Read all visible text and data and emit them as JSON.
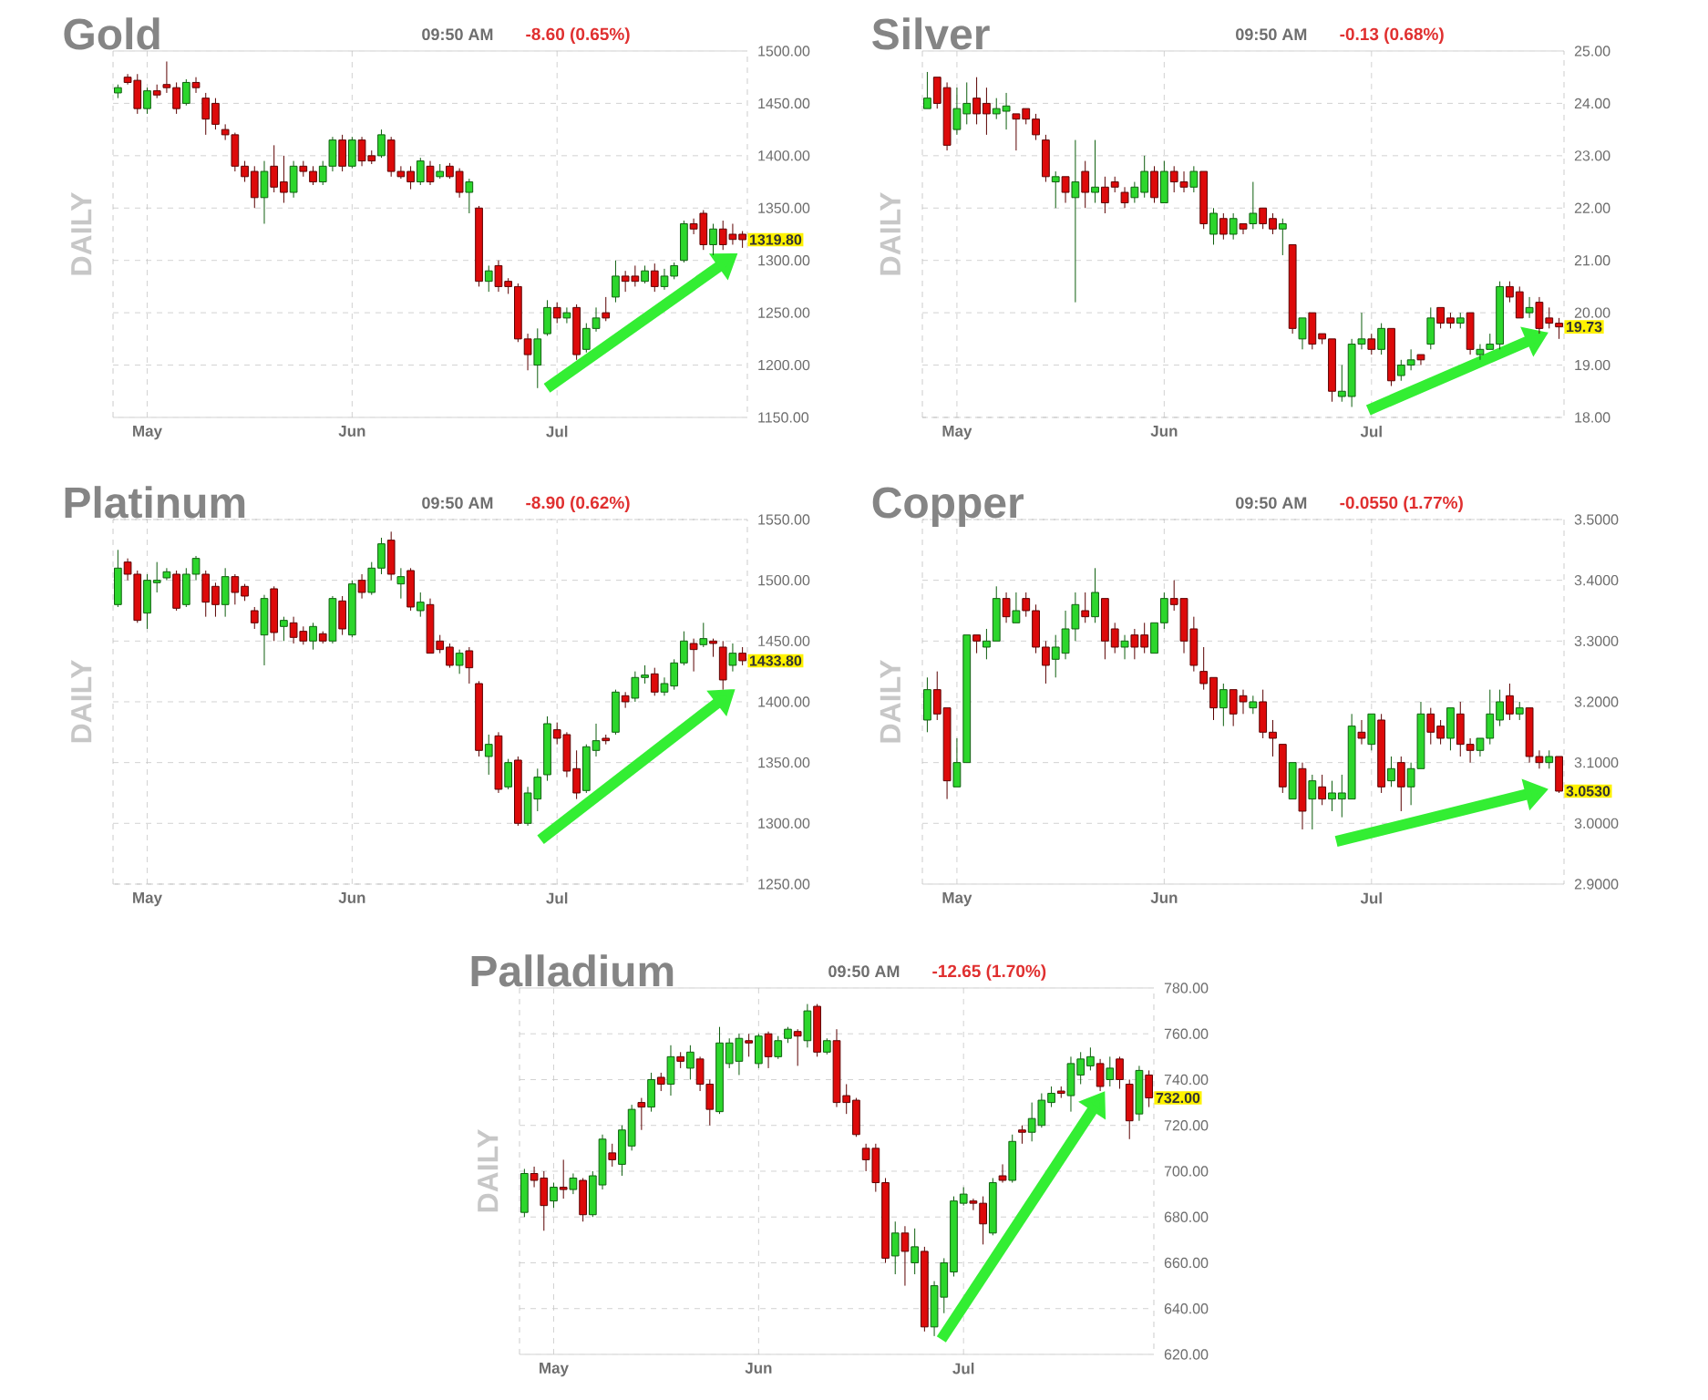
{
  "chart_data": [
    {
      "type": "candlestick",
      "title": "Gold",
      "ylabel": "DAILY",
      "annotations": [
        "09:50 AM",
        "-8.60 (0.65%)",
        "1319.80"
      ],
      "categories": [
        null,
        null,
        null,
        "May",
        null,
        null,
        null,
        null,
        null,
        null,
        null,
        null,
        null,
        null,
        null,
        null,
        null,
        null,
        null,
        null,
        null,
        null,
        null,
        null,
        "Jun",
        null,
        null,
        null,
        null,
        null,
        null,
        null,
        null,
        null,
        null,
        null,
        null,
        null,
        null,
        null,
        null,
        null,
        null,
        null,
        null,
        "Jul",
        null,
        null,
        null,
        null,
        null,
        null,
        null,
        null,
        null,
        null,
        null,
        null,
        null,
        null,
        null,
        null,
        null,
        null,
        null
      ],
      "ohlc": [
        [
          1460,
          1468,
          1455,
          1465
        ],
        [
          1475,
          1478,
          1468,
          1470
        ],
        [
          1472,
          1478,
          1440,
          1445
        ],
        [
          1445,
          1465,
          1440,
          1462
        ],
        [
          1462,
          1468,
          1455,
          1458
        ],
        [
          1468,
          1490,
          1460,
          1465
        ],
        [
          1465,
          1470,
          1440,
          1445
        ],
        [
          1450,
          1473,
          1448,
          1470
        ],
        [
          1470,
          1475,
          1460,
          1465
        ],
        [
          1455,
          1460,
          1420,
          1435
        ],
        [
          1450,
          1455,
          1425,
          1430
        ],
        [
          1425,
          1430,
          1415,
          1420
        ],
        [
          1420,
          1422,
          1385,
          1390
        ],
        [
          1390,
          1395,
          1375,
          1380
        ],
        [
          1385,
          1390,
          1350,
          1360
        ],
        [
          1360,
          1395,
          1335,
          1385
        ],
        [
          1390,
          1410,
          1365,
          1370
        ],
        [
          1375,
          1400,
          1355,
          1365
        ],
        [
          1365,
          1395,
          1360,
          1390
        ],
        [
          1390,
          1395,
          1380,
          1385
        ],
        [
          1385,
          1390,
          1372,
          1375
        ],
        [
          1375,
          1395,
          1372,
          1390
        ],
        [
          1390,
          1418,
          1385,
          1415
        ],
        [
          1415,
          1420,
          1385,
          1390
        ],
        [
          1390,
          1418,
          1388,
          1415
        ],
        [
          1415,
          1418,
          1390,
          1395
        ],
        [
          1400,
          1405,
          1392,
          1395
        ],
        [
          1400,
          1425,
          1398,
          1420
        ],
        [
          1415,
          1418,
          1380,
          1385
        ],
        [
          1385,
          1390,
          1378,
          1380
        ],
        [
          1385,
          1390,
          1368,
          1375
        ],
        [
          1375,
          1398,
          1372,
          1395
        ],
        [
          1390,
          1395,
          1372,
          1375
        ],
        [
          1380,
          1392,
          1378,
          1385
        ],
        [
          1390,
          1393,
          1378,
          1380
        ],
        [
          1385,
          1388,
          1360,
          1365
        ],
        [
          1365,
          1378,
          1345,
          1375
        ],
        [
          1350,
          1352,
          1275,
          1280
        ],
        [
          1280,
          1295,
          1270,
          1290
        ],
        [
          1295,
          1300,
          1270,
          1275
        ],
        [
          1280,
          1283,
          1268,
          1275
        ],
        [
          1275,
          1278,
          1222,
          1225
        ],
        [
          1225,
          1230,
          1195,
          1210
        ],
        [
          1200,
          1235,
          1178,
          1225
        ],
        [
          1230,
          1262,
          1228,
          1255
        ],
        [
          1255,
          1260,
          1240,
          1245
        ],
        [
          1245,
          1255,
          1240,
          1250
        ],
        [
          1255,
          1258,
          1205,
          1210
        ],
        [
          1215,
          1240,
          1212,
          1235
        ],
        [
          1235,
          1255,
          1232,
          1245
        ],
        [
          1250,
          1265,
          1242,
          1245
        ],
        [
          1265,
          1300,
          1260,
          1285
        ],
        [
          1285,
          1290,
          1270,
          1280
        ],
        [
          1285,
          1295,
          1275,
          1280
        ],
        [
          1280,
          1295,
          1278,
          1290
        ],
        [
          1290,
          1297,
          1270,
          1275
        ],
        [
          1275,
          1292,
          1272,
          1285
        ],
        [
          1285,
          1298,
          1282,
          1295
        ],
        [
          1300,
          1338,
          1298,
          1335
        ],
        [
          1335,
          1340,
          1325,
          1330
        ],
        [
          1345,
          1348,
          1310,
          1315
        ],
        [
          1315,
          1335,
          1305,
          1330
        ],
        [
          1330,
          1338,
          1310,
          1315
        ],
        [
          1325,
          1335,
          1315,
          1320
        ],
        [
          1325,
          1328,
          1312,
          1319.8
        ]
      ],
      "ylim": [
        1150,
        1500
      ],
      "yticks": [
        {
          "value": 1150,
          "label": "1150.00"
        },
        {
          "value": 1200,
          "label": "1200.00"
        },
        {
          "value": 1250,
          "label": "1250.00"
        },
        {
          "value": 1300,
          "label": "1300.00"
        },
        {
          "value": 1350,
          "label": "1350.00"
        },
        {
          "value": 1400,
          "label": "1400.00"
        },
        {
          "value": 1450,
          "label": "1450.00"
        },
        {
          "value": 1500,
          "label": "1500.00"
        }
      ],
      "grid": true
    },
    {
      "type": "candlestick",
      "title": "Silver",
      "ylabel": "DAILY",
      "annotations": [
        "09:50 AM",
        "-0.13 (0.68%)",
        "19.73"
      ],
      "categories": [
        null,
        null,
        null,
        "May",
        null,
        null,
        null,
        null,
        null,
        null,
        null,
        null,
        null,
        null,
        null,
        null,
        null,
        null,
        null,
        null,
        null,
        null,
        null,
        null,
        "Jun",
        null,
        null,
        null,
        null,
        null,
        null,
        null,
        null,
        null,
        null,
        null,
        null,
        null,
        null,
        null,
        null,
        null,
        null,
        null,
        null,
        "Jul",
        null,
        null,
        null,
        null,
        null,
        null,
        null,
        null,
        null,
        null,
        null,
        null,
        null,
        null,
        null,
        null,
        null,
        null,
        null
      ],
      "ohlc": [
        [
          23.9,
          24.6,
          23.9,
          24.1
        ],
        [
          24.5,
          24.5,
          23.9,
          24.0
        ],
        [
          24.3,
          24.4,
          23.1,
          23.2
        ],
        [
          23.5,
          24.3,
          23.4,
          23.9
        ],
        [
          23.8,
          24.4,
          23.6,
          24.0
        ],
        [
          24.1,
          24.5,
          23.6,
          23.8
        ],
        [
          24.0,
          24.3,
          23.4,
          23.8
        ],
        [
          23.8,
          24.1,
          23.7,
          23.9
        ],
        [
          23.85,
          24.2,
          23.5,
          23.95
        ],
        [
          23.8,
          23.8,
          23.1,
          23.7
        ],
        [
          23.9,
          23.9,
          23.6,
          23.7
        ],
        [
          23.7,
          23.8,
          23.3,
          23.4
        ],
        [
          23.3,
          23.4,
          22.5,
          22.6
        ],
        [
          22.5,
          22.7,
          22.0,
          22.6
        ],
        [
          22.6,
          22.6,
          22.1,
          22.3
        ],
        [
          22.2,
          23.3,
          20.2,
          22.5
        ],
        [
          22.7,
          22.9,
          22.0,
          22.3
        ],
        [
          22.3,
          23.3,
          22.1,
          22.4
        ],
        [
          22.4,
          22.6,
          21.9,
          22.1
        ],
        [
          22.5,
          22.6,
          22.3,
          22.4
        ],
        [
          22.3,
          22.4,
          22.0,
          22.1
        ],
        [
          22.2,
          22.5,
          22.1,
          22.4
        ],
        [
          22.3,
          23.0,
          22.2,
          22.7
        ],
        [
          22.7,
          22.8,
          22.1,
          22.2
        ],
        [
          22.1,
          22.9,
          22.1,
          22.7
        ],
        [
          22.7,
          22.8,
          22.3,
          22.5
        ],
        [
          22.5,
          22.7,
          22.3,
          22.4
        ],
        [
          22.4,
          22.8,
          22.3,
          22.7
        ],
        [
          22.7,
          22.7,
          21.6,
          21.7
        ],
        [
          21.5,
          22.0,
          21.3,
          21.9
        ],
        [
          21.8,
          21.9,
          21.4,
          21.5
        ],
        [
          21.5,
          21.9,
          21.4,
          21.8
        ],
        [
          21.7,
          21.7,
          21.5,
          21.6
        ],
        [
          21.7,
          22.5,
          21.6,
          21.9
        ],
        [
          22.0,
          22.0,
          21.6,
          21.7
        ],
        [
          21.8,
          21.9,
          21.5,
          21.6
        ],
        [
          21.6,
          21.8,
          21.1,
          21.7
        ],
        [
          21.3,
          21.3,
          19.6,
          19.7
        ],
        [
          19.5,
          19.9,
          19.3,
          19.9
        ],
        [
          20.0,
          20.0,
          19.3,
          19.4
        ],
        [
          19.6,
          19.6,
          19.4,
          19.5
        ],
        [
          19.5,
          19.5,
          18.3,
          18.5
        ],
        [
          18.4,
          19.0,
          18.3,
          18.5
        ],
        [
          18.4,
          19.5,
          18.2,
          19.4
        ],
        [
          19.4,
          20.0,
          19.3,
          19.5
        ],
        [
          19.5,
          19.6,
          19.2,
          19.3
        ],
        [
          19.3,
          19.8,
          19.2,
          19.7
        ],
        [
          19.7,
          19.7,
          18.6,
          18.7
        ],
        [
          18.8,
          19.1,
          18.7,
          19.0
        ],
        [
          19.0,
          19.3,
          18.9,
          19.1
        ],
        [
          19.2,
          19.2,
          19.0,
          19.1
        ],
        [
          19.4,
          20.1,
          19.3,
          19.9
        ],
        [
          20.1,
          20.1,
          19.7,
          19.8
        ],
        [
          19.9,
          20.0,
          19.7,
          19.8
        ],
        [
          19.8,
          20.0,
          19.7,
          19.9
        ],
        [
          20.0,
          20.0,
          19.2,
          19.3
        ],
        [
          19.2,
          19.4,
          19.1,
          19.3
        ],
        [
          19.3,
          19.6,
          19.3,
          19.4
        ],
        [
          19.4,
          20.6,
          19.3,
          20.5
        ],
        [
          20.5,
          20.6,
          20.2,
          20.3
        ],
        [
          20.4,
          20.5,
          19.9,
          19.9
        ],
        [
          20.0,
          20.3,
          19.9,
          20.1
        ],
        [
          20.2,
          20.3,
          19.6,
          19.7
        ],
        [
          19.9,
          20.1,
          19.7,
          19.8
        ],
        [
          19.8,
          19.9,
          19.5,
          19.73
        ]
      ],
      "ylim": [
        18,
        25
      ],
      "yticks": [
        {
          "value": 18,
          "label": "18.00"
        },
        {
          "value": 19,
          "label": "19.00"
        },
        {
          "value": 20,
          "label": "20.00"
        },
        {
          "value": 21,
          "label": "21.00"
        },
        {
          "value": 22,
          "label": "22.00"
        },
        {
          "value": 23,
          "label": "23.00"
        },
        {
          "value": 24,
          "label": "24.00"
        },
        {
          "value": 25,
          "label": "25.00"
        }
      ],
      "grid": true
    },
    {
      "type": "candlestick",
      "title": "Platinum",
      "ylabel": "DAILY",
      "annotations": [
        "09:50 AM",
        "-8.90 (0.62%)",
        "1433.80"
      ],
      "categories": [
        null,
        null,
        null,
        "May",
        null,
        null,
        null,
        null,
        null,
        null,
        null,
        null,
        null,
        null,
        null,
        null,
        null,
        null,
        null,
        null,
        null,
        null,
        null,
        null,
        "Jun",
        null,
        null,
        null,
        null,
        null,
        null,
        null,
        null,
        null,
        null,
        null,
        null,
        null,
        null,
        null,
        null,
        null,
        null,
        null,
        null,
        "Jul",
        null,
        null,
        null,
        null,
        null,
        null,
        null,
        null,
        null,
        null,
        null,
        null,
        null,
        null,
        null,
        null,
        null,
        null,
        null
      ],
      "ohlc": [
        [
          1480,
          1525,
          1478,
          1510
        ],
        [
          1515,
          1518,
          1500,
          1505
        ],
        [
          1505,
          1508,
          1465,
          1467
        ],
        [
          1473,
          1505,
          1460,
          1500
        ],
        [
          1498,
          1515,
          1490,
          1500
        ],
        [
          1502,
          1510,
          1500,
          1507
        ],
        [
          1505,
          1508,
          1475,
          1477
        ],
        [
          1480,
          1510,
          1478,
          1505
        ],
        [
          1505,
          1520,
          1500,
          1518
        ],
        [
          1505,
          1508,
          1470,
          1482
        ],
        [
          1495,
          1498,
          1470,
          1480
        ],
        [
          1480,
          1510,
          1470,
          1503
        ],
        [
          1503,
          1505,
          1480,
          1490
        ],
        [
          1495,
          1497,
          1483,
          1487
        ],
        [
          1475,
          1478,
          1460,
          1465
        ],
        [
          1455,
          1488,
          1430,
          1485
        ],
        [
          1493,
          1495,
          1450,
          1457
        ],
        [
          1462,
          1470,
          1450,
          1467
        ],
        [
          1465,
          1470,
          1448,
          1453
        ],
        [
          1458,
          1462,
          1447,
          1450
        ],
        [
          1450,
          1465,
          1443,
          1462
        ],
        [
          1456,
          1458,
          1448,
          1450
        ],
        [
          1450,
          1487,
          1448,
          1485
        ],
        [
          1483,
          1487,
          1455,
          1460
        ],
        [
          1455,
          1500,
          1453,
          1497
        ],
        [
          1500,
          1505,
          1485,
          1490
        ],
        [
          1490,
          1515,
          1488,
          1510
        ],
        [
          1510,
          1535,
          1505,
          1530
        ],
        [
          1533,
          1540,
          1500,
          1505
        ],
        [
          1497,
          1510,
          1485,
          1503
        ],
        [
          1508,
          1510,
          1475,
          1478
        ],
        [
          1475,
          1490,
          1470,
          1482
        ],
        [
          1480,
          1485,
          1440,
          1440
        ],
        [
          1450,
          1455,
          1440,
          1443
        ],
        [
          1445,
          1448,
          1428,
          1430
        ],
        [
          1430,
          1443,
          1423,
          1440
        ],
        [
          1442,
          1445,
          1415,
          1428
        ],
        [
          1415,
          1417,
          1355,
          1360
        ],
        [
          1355,
          1373,
          1340,
          1365
        ],
        [
          1372,
          1375,
          1325,
          1328
        ],
        [
          1330,
          1353,
          1328,
          1350
        ],
        [
          1352,
          1355,
          1298,
          1300
        ],
        [
          1300,
          1330,
          1298,
          1325
        ],
        [
          1320,
          1345,
          1310,
          1338
        ],
        [
          1340,
          1388,
          1335,
          1382
        ],
        [
          1377,
          1383,
          1365,
          1370
        ],
        [
          1373,
          1375,
          1338,
          1343
        ],
        [
          1345,
          1360,
          1320,
          1325
        ],
        [
          1327,
          1365,
          1325,
          1363
        ],
        [
          1360,
          1382,
          1355,
          1368
        ],
        [
          1370,
          1373,
          1365,
          1368
        ],
        [
          1375,
          1410,
          1373,
          1408
        ],
        [
          1405,
          1408,
          1395,
          1400
        ],
        [
          1403,
          1425,
          1400,
          1420
        ],
        [
          1420,
          1430,
          1415,
          1422
        ],
        [
          1423,
          1428,
          1405,
          1408
        ],
        [
          1408,
          1420,
          1405,
          1415
        ],
        [
          1413,
          1435,
          1410,
          1432
        ],
        [
          1432,
          1458,
          1430,
          1450
        ],
        [
          1448,
          1452,
          1425,
          1443
        ],
        [
          1447,
          1465,
          1445,
          1452
        ],
        [
          1450,
          1452,
          1437,
          1448
        ],
        [
          1445,
          1450,
          1410,
          1418
        ],
        [
          1430,
          1448,
          1425,
          1440
        ],
        [
          1440,
          1445,
          1430,
          1433.8
        ]
      ],
      "ylim": [
        1250,
        1550
      ],
      "yticks": [
        {
          "value": 1250,
          "label": "1250.00"
        },
        {
          "value": 1300,
          "label": "1300.00"
        },
        {
          "value": 1350,
          "label": "1350.00"
        },
        {
          "value": 1400,
          "label": "1400.00"
        },
        {
          "value": 1450,
          "label": "1450.00"
        },
        {
          "value": 1500,
          "label": "1500.00"
        },
        {
          "value": 1550,
          "label": "1550.00"
        }
      ],
      "grid": true
    },
    {
      "type": "candlestick",
      "title": "Copper",
      "ylabel": "DAILY",
      "annotations": [
        "09:50 AM",
        "-0.0550 (1.77%)",
        "3.0530"
      ],
      "categories": [
        null,
        null,
        null,
        "May",
        null,
        null,
        null,
        null,
        null,
        null,
        null,
        null,
        null,
        null,
        null,
        null,
        null,
        null,
        null,
        null,
        null,
        null,
        null,
        null,
        "Jun",
        null,
        null,
        null,
        null,
        null,
        null,
        null,
        null,
        null,
        null,
        null,
        null,
        null,
        null,
        null,
        null,
        null,
        null,
        null,
        null,
        "Jul",
        null,
        null,
        null,
        null,
        null,
        null,
        null,
        null,
        null,
        null,
        null,
        null,
        null,
        null,
        null,
        null,
        null,
        null,
        null
      ],
      "ohlc": [
        [
          3.17,
          3.24,
          3.15,
          3.22
        ],
        [
          3.22,
          3.25,
          3.17,
          3.18
        ],
        [
          3.19,
          3.19,
          3.04,
          3.07
        ],
        [
          3.06,
          3.14,
          3.06,
          3.1
        ],
        [
          3.1,
          3.31,
          3.1,
          3.31
        ],
        [
          3.31,
          3.31,
          3.28,
          3.3
        ],
        [
          3.29,
          3.32,
          3.27,
          3.3
        ],
        [
          3.3,
          3.39,
          3.3,
          3.37
        ],
        [
          3.37,
          3.38,
          3.33,
          3.34
        ],
        [
          3.33,
          3.38,
          3.33,
          3.35
        ],
        [
          3.37,
          3.38,
          3.34,
          3.35
        ],
        [
          3.35,
          3.36,
          3.28,
          3.29
        ],
        [
          3.29,
          3.3,
          3.23,
          3.26
        ],
        [
          3.27,
          3.31,
          3.24,
          3.29
        ],
        [
          3.28,
          3.35,
          3.27,
          3.32
        ],
        [
          3.32,
          3.38,
          3.3,
          3.36
        ],
        [
          3.35,
          3.38,
          3.33,
          3.34
        ],
        [
          3.34,
          3.42,
          3.33,
          3.38
        ],
        [
          3.37,
          3.37,
          3.27,
          3.3
        ],
        [
          3.32,
          3.33,
          3.28,
          3.29
        ],
        [
          3.29,
          3.31,
          3.27,
          3.3
        ],
        [
          3.31,
          3.32,
          3.27,
          3.29
        ],
        [
          3.31,
          3.33,
          3.28,
          3.29
        ],
        [
          3.28,
          3.33,
          3.28,
          3.33
        ],
        [
          3.33,
          3.38,
          3.32,
          3.37
        ],
        [
          3.37,
          3.4,
          3.35,
          3.36
        ],
        [
          3.37,
          3.37,
          3.28,
          3.3
        ],
        [
          3.32,
          3.34,
          3.25,
          3.26
        ],
        [
          3.25,
          3.29,
          3.22,
          3.23
        ],
        [
          3.24,
          3.24,
          3.17,
          3.19
        ],
        [
          3.19,
          3.23,
          3.16,
          3.22
        ],
        [
          3.22,
          3.22,
          3.16,
          3.18
        ],
        [
          3.21,
          3.22,
          3.18,
          3.2
        ],
        [
          3.19,
          3.21,
          3.18,
          3.2
        ],
        [
          3.2,
          3.22,
          3.14,
          3.15
        ],
        [
          3.15,
          3.17,
          3.11,
          3.14
        ],
        [
          3.13,
          3.13,
          3.05,
          3.06
        ],
        [
          3.04,
          3.1,
          3.04,
          3.1
        ],
        [
          3.09,
          3.1,
          2.99,
          3.02
        ],
        [
          3.04,
          3.08,
          2.99,
          3.07
        ],
        [
          3.06,
          3.08,
          3.03,
          3.04
        ],
        [
          3.04,
          3.07,
          3.02,
          3.05
        ],
        [
          3.04,
          3.08,
          3.01,
          3.05
        ],
        [
          3.04,
          3.18,
          3.04,
          3.16
        ],
        [
          3.15,
          3.17,
          3.13,
          3.14
        ],
        [
          3.13,
          3.18,
          3.12,
          3.18
        ],
        [
          3.17,
          3.18,
          3.05,
          3.06
        ],
        [
          3.07,
          3.11,
          3.06,
          3.09
        ],
        [
          3.1,
          3.11,
          3.02,
          3.06
        ],
        [
          3.06,
          3.1,
          3.03,
          3.09
        ],
        [
          3.09,
          3.2,
          3.09,
          3.18
        ],
        [
          3.18,
          3.19,
          3.13,
          3.15
        ],
        [
          3.16,
          3.17,
          3.13,
          3.14
        ],
        [
          3.14,
          3.19,
          3.12,
          3.19
        ],
        [
          3.18,
          3.2,
          3.11,
          3.13
        ],
        [
          3.13,
          3.14,
          3.1,
          3.12
        ],
        [
          3.12,
          3.14,
          3.11,
          3.14
        ],
        [
          3.14,
          3.22,
          3.13,
          3.18
        ],
        [
          3.17,
          3.22,
          3.16,
          3.2
        ],
        [
          3.21,
          3.23,
          3.17,
          3.18
        ],
        [
          3.18,
          3.2,
          3.17,
          3.19
        ],
        [
          3.19,
          3.19,
          3.1,
          3.11
        ],
        [
          3.11,
          3.12,
          3.09,
          3.1
        ],
        [
          3.1,
          3.12,
          3.09,
          3.11
        ],
        [
          3.11,
          3.11,
          3.05,
          3.053
        ]
      ],
      "ylim": [
        2.9,
        3.5
      ],
      "yticks": [
        {
          "value": 2.9,
          "label": "2.9000"
        },
        {
          "value": 3.0,
          "label": "3.0000"
        },
        {
          "value": 3.1,
          "label": "3.1000"
        },
        {
          "value": 3.2,
          "label": "3.2000"
        },
        {
          "value": 3.3,
          "label": "3.3000"
        },
        {
          "value": 3.4,
          "label": "3.4000"
        },
        {
          "value": 3.5,
          "label": "3.5000"
        }
      ],
      "grid": true
    },
    {
      "type": "candlestick",
      "title": "Palladium",
      "ylabel": "DAILY",
      "annotations": [
        "09:50 AM",
        "-12.65 (1.70%)",
        "732.00"
      ],
      "categories": [
        null,
        null,
        null,
        "May",
        null,
        null,
        null,
        null,
        null,
        null,
        null,
        null,
        null,
        null,
        null,
        null,
        null,
        null,
        null,
        null,
        null,
        null,
        null,
        null,
        "Jun",
        null,
        null,
        null,
        null,
        null,
        null,
        null,
        null,
        null,
        null,
        null,
        null,
        null,
        null,
        null,
        null,
        null,
        null,
        null,
        null,
        "Jul",
        null,
        null,
        null,
        null,
        null,
        null,
        null,
        null,
        null,
        null,
        null,
        null,
        null,
        null,
        null,
        null,
        null,
        null,
        null
      ],
      "ohlc": [
        [
          682,
          701,
          680,
          699
        ],
        [
          699,
          702,
          693,
          696
        ],
        [
          697,
          700,
          674,
          685
        ],
        [
          687,
          695,
          684,
          693
        ],
        [
          693,
          705,
          688,
          692
        ],
        [
          692,
          699,
          690,
          697
        ],
        [
          696,
          697,
          678,
          681
        ],
        [
          681,
          700,
          680,
          698
        ],
        [
          694,
          716,
          692,
          714
        ],
        [
          708,
          712,
          702,
          705
        ],
        [
          703,
          720,
          698,
          718
        ],
        [
          711,
          729,
          709,
          727
        ],
        [
          730,
          732,
          718,
          728
        ],
        [
          728,
          743,
          726,
          740
        ],
        [
          741,
          743,
          735,
          738
        ],
        [
          738,
          755,
          733,
          750
        ],
        [
          750,
          752,
          745,
          748
        ],
        [
          745,
          755,
          740,
          752
        ],
        [
          749,
          750,
          735,
          738
        ],
        [
          738,
          740,
          720,
          727
        ],
        [
          726,
          763,
          725,
          756
        ],
        [
          747,
          758,
          745,
          756
        ],
        [
          748,
          760,
          742,
          758
        ],
        [
          757,
          760,
          750,
          756
        ],
        [
          747,
          760,
          745,
          759
        ],
        [
          760,
          761,
          745,
          750
        ],
        [
          750,
          759,
          749,
          757
        ],
        [
          758,
          763,
          756,
          762
        ],
        [
          761,
          762,
          746,
          759
        ],
        [
          757,
          773,
          754,
          770
        ],
        [
          772,
          773,
          750,
          752
        ],
        [
          752,
          758,
          751,
          757
        ],
        [
          757,
          762,
          728,
          730
        ],
        [
          733,
          738,
          725,
          730
        ],
        [
          731,
          732,
          715,
          716
        ],
        [
          710,
          712,
          700,
          705
        ],
        [
          710,
          712,
          691,
          695
        ],
        [
          695,
          697,
          660,
          662
        ],
        [
          663,
          678,
          655,
          673
        ],
        [
          673,
          676,
          650,
          665
        ],
        [
          660,
          675,
          655,
          667
        ],
        [
          665,
          667,
          630,
          632
        ],
        [
          632,
          652,
          628,
          650
        ],
        [
          645,
          662,
          638,
          660
        ],
        [
          656,
          689,
          654,
          687
        ],
        [
          686,
          693,
          685,
          690
        ],
        [
          687,
          688,
          683,
          686
        ],
        [
          686,
          689,
          668,
          677
        ],
        [
          673,
          697,
          672,
          695
        ],
        [
          698,
          703,
          695,
          696
        ],
        [
          696,
          716,
          695,
          713
        ],
        [
          718,
          720,
          712,
          717
        ],
        [
          717,
          730,
          713,
          723
        ],
        [
          720,
          734,
          719,
          731
        ],
        [
          730,
          737,
          728,
          734
        ],
        [
          735,
          737,
          732,
          734
        ],
        [
          733,
          750,
          726,
          747
        ],
        [
          742,
          752,
          738,
          749
        ],
        [
          746,
          754,
          744,
          750
        ],
        [
          747,
          749,
          735,
          737
        ],
        [
          740,
          750,
          737,
          745
        ],
        [
          749,
          750,
          736,
          740
        ],
        [
          738,
          740,
          714,
          722
        ],
        [
          725,
          746,
          722,
          744
        ],
        [
          742,
          744,
          728,
          732
        ]
      ],
      "ylim": [
        620,
        780
      ],
      "yticks": [
        {
          "value": 620,
          "label": "620.00"
        },
        {
          "value": 640,
          "label": "640.00"
        },
        {
          "value": 660,
          "label": "660.00"
        },
        {
          "value": 680,
          "label": "680.00"
        },
        {
          "value": 700,
          "label": "700.00"
        },
        {
          "value": 720,
          "label": "720.00"
        },
        {
          "value": 740,
          "label": "740.00"
        },
        {
          "value": 760,
          "label": "760.00"
        },
        {
          "value": 780,
          "label": "780.00"
        }
      ],
      "grid": true
    }
  ]
}
